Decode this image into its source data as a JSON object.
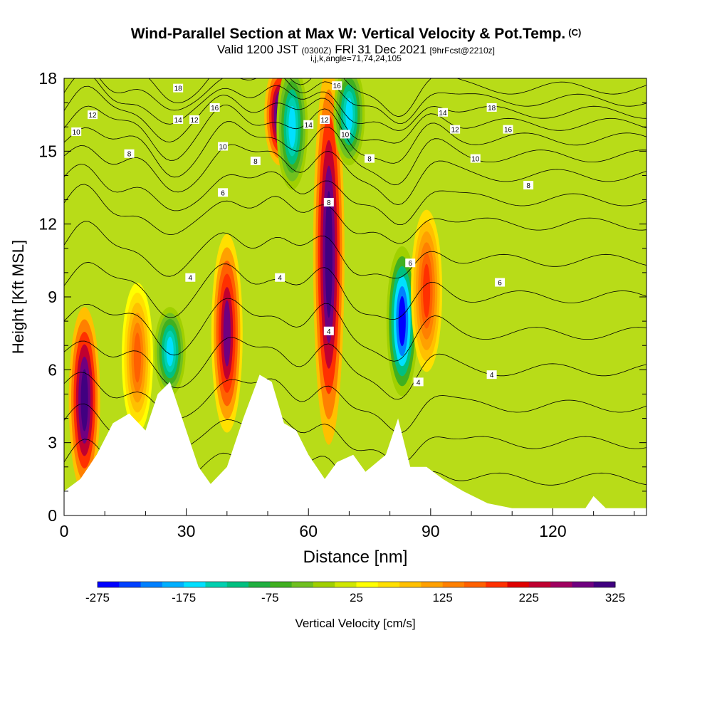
{
  "header": {
    "title": "Wind-Parallel Section at Max W: Vertical Velocity & Pot.Temp.",
    "copyright": "(C)",
    "valid_prefix": "Valid 1200 JST",
    "valid_utc": "(0300Z)",
    "valid_date": "FRI 31 Dec 2021",
    "forecast": "[9hrFcst@2210z]",
    "indices": "i,j,k,angle=71,74,24,105"
  },
  "chart_data": {
    "type": "heatmap",
    "xlabel": "Distance [nm]",
    "ylabel": "Height [Kft MSL]",
    "xlim": [
      0,
      143
    ],
    "ylim": [
      0,
      18
    ],
    "x_ticks": [
      0,
      30,
      60,
      90,
      120
    ],
    "y_ticks": [
      0,
      3,
      6,
      9,
      12,
      15,
      18
    ],
    "colorbar": {
      "label": "Vertical Velocity [cm/s]",
      "ticks": [
        -275,
        -175,
        -75,
        25,
        125,
        225,
        325
      ],
      "colors": [
        "#0000ff",
        "#0040ff",
        "#0080ff",
        "#00b0ff",
        "#00e0ff",
        "#00d0b0",
        "#00c080",
        "#20b040",
        "#40b020",
        "#70c020",
        "#a0d000",
        "#d0e800",
        "#ffff00",
        "#ffe000",
        "#ffc000",
        "#ffa000",
        "#ff8000",
        "#ff6000",
        "#ff3000",
        "#e00000",
        "#c00030",
        "#a00060",
        "#700080",
        "#400080"
      ]
    },
    "vertical_velocity_bands": [
      {
        "x": 5,
        "w": 325,
        "ymin": 1.5,
        "ymax": 8
      },
      {
        "x": 18,
        "w": 150,
        "ymin": 4,
        "ymax": 9
      },
      {
        "x": 26,
        "w": -175,
        "ymin": 5.5,
        "ymax": 8
      },
      {
        "x": 40,
        "w": 275,
        "ymin": 4,
        "ymax": 11
      },
      {
        "x": 53,
        "w": 325,
        "ymin": 15,
        "ymax": 18
      },
      {
        "x": 56,
        "w": -175,
        "ymin": 14,
        "ymax": 18
      },
      {
        "x": 65,
        "w": 325,
        "ymin": 3.5,
        "ymax": 18
      },
      {
        "x": 70,
        "w": -175,
        "ymin": 15,
        "ymax": 18
      },
      {
        "x": 83,
        "w": -275,
        "ymin": 5.5,
        "ymax": 10.5
      },
      {
        "x": 89,
        "w": 175,
        "ymin": 6.5,
        "ymax": 12
      }
    ],
    "potential_temperature_contours": {
      "labels": [
        {
          "x": 3,
          "y": 15.8,
          "text": "10"
        },
        {
          "x": 7,
          "y": 16.5,
          "text": "12"
        },
        {
          "x": 16,
          "y": 14.9,
          "text": "8"
        },
        {
          "x": 28,
          "y": 17.6,
          "text": "18"
        },
        {
          "x": 28,
          "y": 16.3,
          "text": "14"
        },
        {
          "x": 32,
          "y": 16.3,
          "text": "12"
        },
        {
          "x": 37,
          "y": 16.8,
          "text": "16"
        },
        {
          "x": 39,
          "y": 15.2,
          "text": "10"
        },
        {
          "x": 39,
          "y": 13.3,
          "text": "6"
        },
        {
          "x": 47,
          "y": 14.6,
          "text": "8"
        },
        {
          "x": 31,
          "y": 9.8,
          "text": "4"
        },
        {
          "x": 53,
          "y": 9.8,
          "text": "4"
        },
        {
          "x": 60,
          "y": 16.1,
          "text": "14"
        },
        {
          "x": 64,
          "y": 16.3,
          "text": "12"
        },
        {
          "x": 67,
          "y": 17.7,
          "text": "16"
        },
        {
          "x": 69,
          "y": 15.7,
          "text": "10"
        },
        {
          "x": 65,
          "y": 12.9,
          "text": "8"
        },
        {
          "x": 75,
          "y": 14.7,
          "text": "8"
        },
        {
          "x": 65,
          "y": 7.6,
          "text": "4"
        },
        {
          "x": 85,
          "y": 10.4,
          "text": "6"
        },
        {
          "x": 87,
          "y": 5.5,
          "text": "4"
        },
        {
          "x": 93,
          "y": 16.6,
          "text": "14"
        },
        {
          "x": 96,
          "y": 15.9,
          "text": "12"
        },
        {
          "x": 105,
          "y": 16.8,
          "text": "18"
        },
        {
          "x": 109,
          "y": 15.9,
          "text": "16"
        },
        {
          "x": 101,
          "y": 14.7,
          "text": "10"
        },
        {
          "x": 114,
          "y": 13.6,
          "text": "8"
        },
        {
          "x": 107,
          "y": 9.6,
          "text": "6"
        },
        {
          "x": 105,
          "y": 5.8,
          "text": "4"
        }
      ]
    },
    "terrain": [
      [
        0,
        1.0
      ],
      [
        4,
        1.5
      ],
      [
        8,
        2.5
      ],
      [
        12,
        3.8
      ],
      [
        16,
        4.2
      ],
      [
        20,
        3.5
      ],
      [
        23,
        5.0
      ],
      [
        26,
        5.5
      ],
      [
        30,
        3.5
      ],
      [
        33,
        2.0
      ],
      [
        36,
        1.3
      ],
      [
        40,
        2.0
      ],
      [
        44,
        4.0
      ],
      [
        48,
        5.8
      ],
      [
        51,
        5.5
      ],
      [
        54,
        3.8
      ],
      [
        57,
        3.5
      ],
      [
        60,
        2.5
      ],
      [
        64,
        1.5
      ],
      [
        67,
        2.2
      ],
      [
        71,
        2.5
      ],
      [
        74,
        1.8
      ],
      [
        79,
        2.5
      ],
      [
        82,
        4.0
      ],
      [
        85,
        2.0
      ],
      [
        89,
        2.0
      ],
      [
        93,
        1.5
      ],
      [
        98,
        1.0
      ],
      [
        104,
        0.5
      ],
      [
        110,
        0.3
      ],
      [
        120,
        0.3
      ],
      [
        128,
        0.3
      ],
      [
        130,
        0.8
      ],
      [
        133,
        0.3
      ],
      [
        143,
        0.3
      ]
    ]
  }
}
